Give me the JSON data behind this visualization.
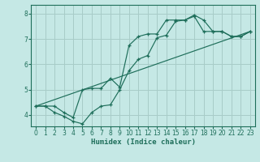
{
  "xlabel": "Humidex (Indice chaleur)",
  "ylabel": "",
  "bg_color": "#c5e8e5",
  "grid_color": "#a8ccc8",
  "line_color": "#1e6e5a",
  "xlim": [
    -0.5,
    23.5
  ],
  "ylim": [
    3.55,
    8.35
  ],
  "xticks": [
    0,
    1,
    2,
    3,
    4,
    5,
    6,
    7,
    8,
    9,
    10,
    11,
    12,
    13,
    14,
    15,
    16,
    17,
    18,
    19,
    20,
    21,
    22,
    23
  ],
  "yticks": [
    4,
    5,
    6,
    7,
    8
  ],
  "line1_x": [
    0,
    1,
    2,
    3,
    4,
    5,
    6,
    7,
    8,
    9,
    10,
    11,
    12,
    13,
    14,
    15,
    16,
    17,
    18,
    19,
    20,
    21,
    22,
    23
  ],
  "line1_y": [
    4.35,
    4.35,
    4.1,
    3.95,
    3.75,
    3.65,
    4.1,
    4.35,
    4.4,
    5.0,
    5.75,
    6.2,
    6.35,
    7.05,
    7.15,
    7.7,
    7.75,
    7.95,
    7.75,
    7.3,
    7.3,
    7.1,
    7.1,
    7.3
  ],
  "line2_x": [
    0,
    1,
    2,
    3,
    4,
    5,
    6,
    7,
    8,
    9,
    10,
    11,
    12,
    13,
    14,
    15,
    16,
    17,
    18,
    19,
    20,
    21,
    22,
    23
  ],
  "line2_y": [
    4.35,
    4.35,
    4.35,
    4.1,
    3.9,
    5.0,
    5.05,
    5.05,
    5.45,
    5.1,
    6.75,
    7.1,
    7.2,
    7.2,
    7.75,
    7.75,
    7.75,
    7.9,
    7.3,
    7.3,
    7.3,
    7.1,
    7.1,
    7.3
  ],
  "line3_x": [
    0,
    23
  ],
  "line3_y": [
    4.35,
    7.3
  ]
}
